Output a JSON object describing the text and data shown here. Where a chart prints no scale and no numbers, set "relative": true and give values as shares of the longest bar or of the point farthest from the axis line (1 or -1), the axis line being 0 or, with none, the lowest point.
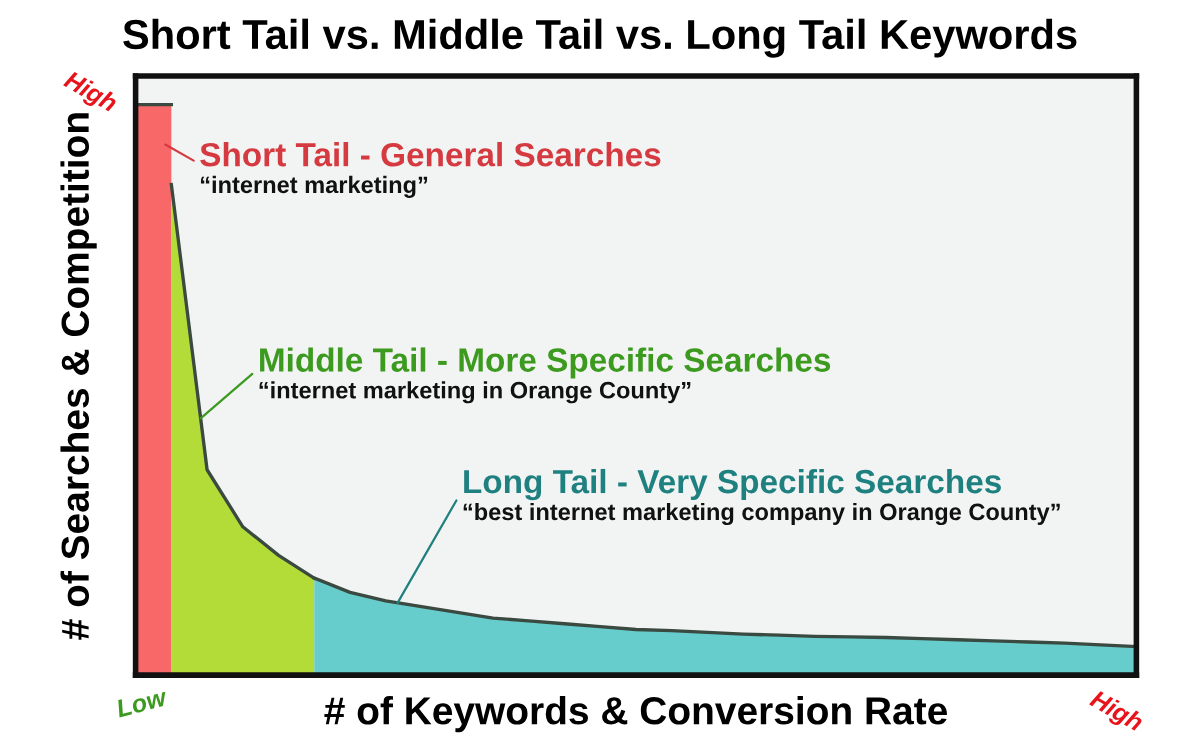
{
  "chart_data": {
    "type": "area",
    "relative": true,
    "title": "Short Tail vs. Middle Tail vs. Long Tail Keywords",
    "xlabel": "# of Keywords & Conversion Rate",
    "ylabel": "# of Searches & Competition",
    "categories": [
      null,
      null,
      null,
      null,
      null,
      null,
      null,
      null,
      null,
      null,
      null,
      null,
      null,
      null,
      null,
      null,
      null,
      null,
      null,
      null,
      null,
      null,
      null,
      null,
      null,
      null,
      null,
      null,
      null
    ],
    "series": [
      {
        "color": "#f96868",
        "values": [
          1,
          1,
          null,
          null,
          null,
          null,
          null,
          null,
          null,
          null,
          null,
          null,
          null,
          null,
          null,
          null,
          null,
          null,
          null,
          null,
          null,
          null,
          null,
          null,
          null,
          null,
          null,
          null,
          null
        ]
      },
      {
        "color": "#b4dc38",
        "values": [
          null,
          0.86,
          0.36,
          0.26,
          0.21,
          0.17,
          null,
          null,
          null,
          null,
          null,
          null,
          null,
          null,
          null,
          null,
          null,
          null,
          null,
          null,
          null,
          null,
          null,
          null,
          null,
          null,
          null,
          null,
          null
        ]
      },
      {
        "color": "#66cccc",
        "values": [
          null,
          null,
          null,
          null,
          null,
          0.17,
          0.145,
          0.13,
          0.12,
          0.11,
          0.1,
          0.095,
          0.09,
          0.085,
          0.08,
          0.078,
          0.075,
          0.072,
          0.07,
          0.068,
          0.067,
          0.066,
          0.064,
          0.062,
          0.06,
          0.058,
          0.056,
          0.053,
          0.05
        ]
      }
    ],
    "annotations": [
      "Short Tail - General Searches",
      "Middle Tail - More Specific Searches",
      "Long Tail - Very Specific Searches",
      "“internet marketing”",
      "“internet marketing in Orange County”",
      "“best internet marketing company in Orange County”",
      "High",
      "Low",
      "High"
    ]
  }
}
